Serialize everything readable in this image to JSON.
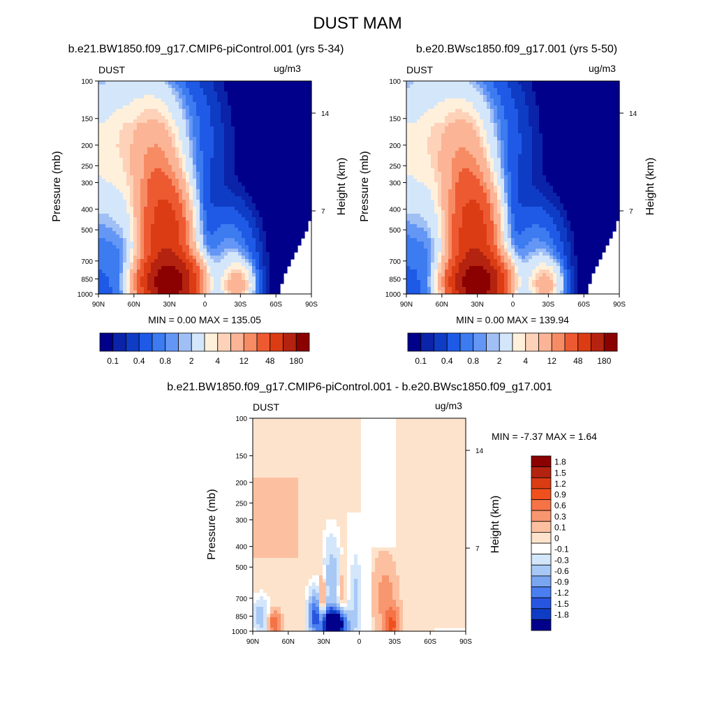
{
  "page_title": "DUST MAM",
  "chart_data": [
    {
      "type": "heatmap",
      "title": "b.e21.BW1850.f09_g17.CMIP6-piControl.001 (yrs 5-34)",
      "variable": "DUST",
      "units": "ug/m3",
      "ylabel": "Pressure (mb)",
      "ylabel_right": "Height (km)",
      "x_ticks": [
        "90N",
        "60N",
        "30N",
        "0",
        "30S",
        "60S",
        "90S"
      ],
      "y_ticks": [
        "100",
        "150",
        "200",
        "250",
        "300",
        "400",
        "500",
        "700",
        "850",
        "1000"
      ],
      "height_ticks": [
        "14",
        "7"
      ],
      "stats": "MIN =   0.00  MAX = 135.05",
      "colorbar_labels": [
        "0.1",
        "0.4",
        "0.8",
        "2",
        "4",
        "12",
        "48",
        "180"
      ],
      "levels": [
        0.05,
        0.1,
        0.2,
        0.4,
        0.6,
        0.8,
        1,
        2,
        3,
        4,
        8,
        12,
        24,
        48,
        96,
        180
      ],
      "colors": [
        "#00008b",
        "#0a23a8",
        "#0f3cc4",
        "#1e5ae6",
        "#3c7bf0",
        "#6496f5",
        "#a0bff5",
        "#d4e6fa",
        "#fff0dc",
        "#fdd2b8",
        "#fbb496",
        "#f78c64",
        "#ed5a32",
        "#db3c14",
        "#b4230f",
        "#8b0000"
      ]
    },
    {
      "type": "heatmap",
      "title": "b.e20.BWsc1850.f09_g17.001 (yrs 5-50)",
      "variable": "DUST",
      "units": "ug/m3",
      "ylabel": "Pressure (mb)",
      "ylabel_right": "Height (km)",
      "x_ticks": [
        "90N",
        "60N",
        "30N",
        "0",
        "30S",
        "60S",
        "90S"
      ],
      "y_ticks": [
        "100",
        "150",
        "200",
        "250",
        "300",
        "400",
        "500",
        "700",
        "850",
        "1000"
      ],
      "height_ticks": [
        "14",
        "7"
      ],
      "stats": "MIN =   0.00  MAX = 139.94",
      "colorbar_labels": [
        "0.1",
        "0.4",
        "0.8",
        "2",
        "4",
        "12",
        "48",
        "180"
      ]
    },
    {
      "type": "heatmap",
      "title": "b.e21.BW1850.f09_g17.CMIP6-piControl.001 - b.e20.BWsc1850.f09_g17.001",
      "variable": "DUST",
      "units": "ug/m3",
      "ylabel": "Pressure (mb)",
      "ylabel_right": "Height (km)",
      "x_ticks": [
        "90N",
        "60N",
        "30N",
        "0",
        "30S",
        "60S",
        "90S"
      ],
      "y_ticks": [
        "100",
        "150",
        "200",
        "250",
        "300",
        "400",
        "500",
        "700",
        "850",
        "1000"
      ],
      "height_ticks": [
        "14",
        "7"
      ],
      "stats": "MIN =  -7.37  MAX =   1.64",
      "colorbar_labels": [
        "1.8",
        "1.5",
        "1.2",
        "0.9",
        "0.6",
        "0.3",
        "0.1",
        "0",
        "-0.1",
        "-0.3",
        "-0.6",
        "-0.9",
        "-1.2",
        "-1.5",
        "-1.8"
      ],
      "colors_top_to_bottom": [
        "#8b0000",
        "#b4230f",
        "#db3c14",
        "#f0501e",
        "#f57346",
        "#f89670",
        "#fcc0a0",
        "#fde3cc",
        "#ffffff",
        "#d4e6fa",
        "#a8c8f5",
        "#7aa5f0",
        "#4b7ef0",
        "#2855e0",
        "#0f3cc4",
        "#00008b"
      ]
    }
  ]
}
